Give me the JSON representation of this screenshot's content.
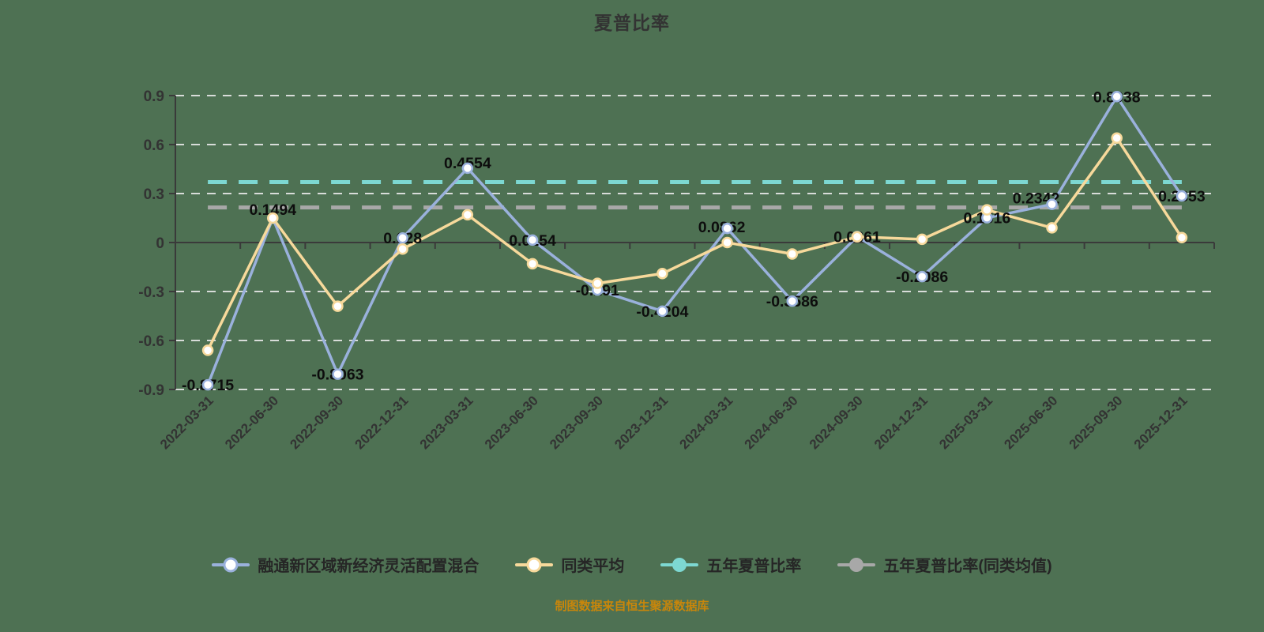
{
  "title": "夏普比率",
  "source_note": "制图数据来自恒生聚源数据库",
  "colors": {
    "background": "#4e7153",
    "fund_line": "#9AB1DC",
    "peer_line": "#F7D99B",
    "five_year_line": "#7DD8D2",
    "five_year_peer_line": "#A8A8A8",
    "grid_line": "#E8E8E8",
    "axis_line": "#3A3A3A",
    "tick_label": "#333333",
    "data_label": "#0d0d0d",
    "title_text": "#333333",
    "legend_text": "#262626",
    "footer_text": "#c8860b"
  },
  "legend": {
    "items": [
      {
        "label": "融通新区域新经济灵活配置混合",
        "color": "#9AB1DC",
        "marker": "line-circle"
      },
      {
        "label": "同类平均",
        "color": "#F7D99B",
        "marker": "line-circle"
      },
      {
        "label": "五年夏普比率",
        "color": "#7DD8D2",
        "marker": "dot"
      },
      {
        "label": "五年夏普比率(同类均值)",
        "color": "#A8A8A8",
        "marker": "dot"
      }
    ]
  },
  "chart_data": {
    "type": "line",
    "title": "夏普比率",
    "categories": [
      "2022-03-31",
      "2022-06-30",
      "2022-09-30",
      "2022-12-31",
      "2023-03-31",
      "2023-06-30",
      "2023-09-30",
      "2023-12-31",
      "2024-03-31",
      "2024-06-30",
      "2024-09-30",
      "2024-12-31",
      "2025-03-31",
      "2025-06-30",
      "2025-09-30",
      "2025-12-31"
    ],
    "series": [
      {
        "name": "融通新区域新经济灵活配置混合",
        "color": "#9AB1DC",
        "values": [
          -0.8715,
          0.1494,
          -0.8063,
          0.028,
          0.4554,
          0.0154,
          -0.291,
          -0.4204,
          0.0862,
          -0.3586,
          0.0361,
          -0.2086,
          0.1516,
          0.2342,
          0.8938,
          0.2853
        ],
        "point_labels": true
      },
      {
        "name": "同类平均",
        "color": "#F7D99B",
        "values": [
          -0.66,
          0.15,
          -0.39,
          -0.04,
          0.17,
          -0.13,
          -0.25,
          -0.19,
          0.0,
          -0.07,
          0.035,
          0.02,
          0.2,
          0.09,
          0.64,
          0.03
        ],
        "point_labels": false
      }
    ],
    "reference_lines": [
      {
        "name": "五年夏普比率",
        "value": 0.37,
        "color": "#7DD8D2",
        "style": "dashed"
      },
      {
        "name": "五年夏普比率(同类均值)",
        "value": 0.215,
        "color": "#A8A8A8",
        "style": "dashed"
      }
    ],
    "ylim": [
      -0.9,
      0.9
    ],
    "ytick_step": 0.3,
    "xlabel_rotation": -45,
    "grid": "horizontal-dashed",
    "legend_position": "bottom",
    "label_offsets": {
      "default": [
        0,
        7
      ],
      "1": [
        0,
        -4
      ],
      "4": [
        0,
        0
      ],
      "8": [
        -7,
        5
      ],
      "13": [
        -20,
        -1
      ]
    }
  }
}
